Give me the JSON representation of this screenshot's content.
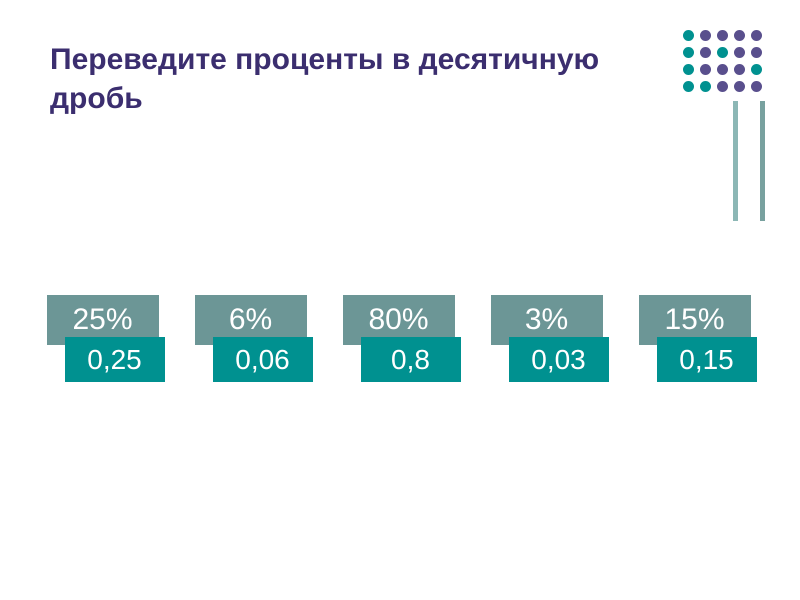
{
  "title": "Переведите проценты в десятичную дробь",
  "title_color": "#3b2e6f",
  "title_fontsize": 30,
  "background_color": "#ffffff",
  "decoration": {
    "dot_colors": [
      "#009190",
      "#594F8D",
      "#594F8D",
      "#594F8D",
      "#594F8D",
      "#009190",
      "#594F8D",
      "#009190",
      "#594F8D",
      "#594F8D",
      "#009190",
      "#594F8D",
      "#594F8D",
      "#594F8D",
      "#009190",
      "#009190",
      "#009190",
      "#594F8D",
      "#594F8D",
      "#594F8D"
    ],
    "line_colors": [
      "#8CB7B5",
      "#78A19F"
    ]
  },
  "pairs": [
    {
      "percent": "25%",
      "decimal": "0,25"
    },
    {
      "percent": "6%",
      "decimal": "0,06"
    },
    {
      "percent": "80%",
      "decimal": "0,8"
    },
    {
      "percent": "3%",
      "decimal": "0,03"
    },
    {
      "percent": "15%",
      "decimal": "0,15"
    }
  ],
  "percent_box_color": "#6C9696",
  "decimal_box_color": "#009190",
  "box_text_color": "#ffffff",
  "percent_fontsize": 30,
  "decimal_fontsize": 28
}
